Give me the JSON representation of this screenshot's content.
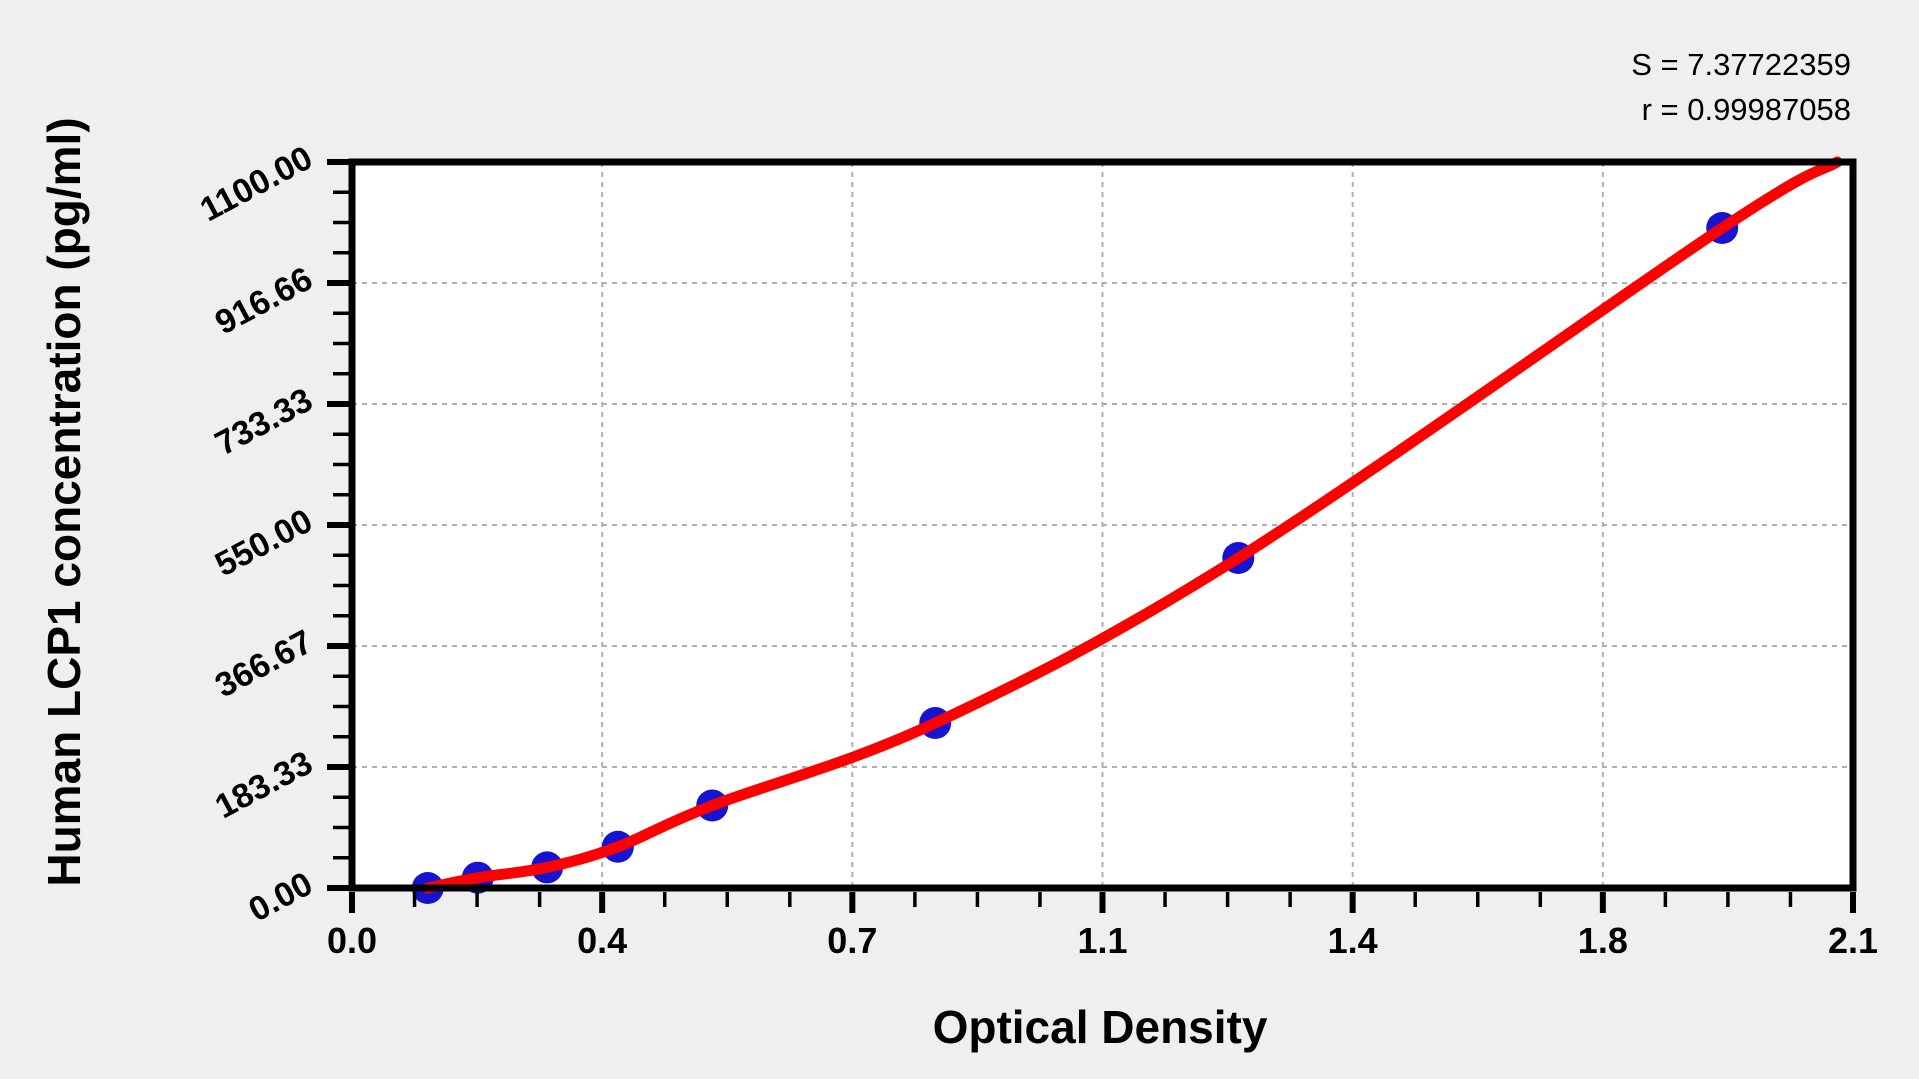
{
  "stats": {
    "s_line": "S = 7.37722359",
    "r_line": "r = 0.99987058"
  },
  "chart_data": {
    "type": "scatter",
    "title": "",
    "xlabel": "Optical Density",
    "ylabel": "Human LCP1 concentration (pg/ml)",
    "xlim": [
      0,
      2.1
    ],
    "ylim": [
      0,
      1100
    ],
    "x_major_ticks": [
      0,
      0.35,
      0.7,
      1.05,
      1.4,
      1.75,
      2.1
    ],
    "x_tick_labels": [
      "0.0",
      "0.4",
      "0.7",
      "1.1",
      "1.4",
      "1.8",
      "2.1"
    ],
    "y_major_ticks": [
      0,
      183.33,
      366.67,
      550.0,
      733.33,
      916.66,
      1100.0
    ],
    "y_tick_labels": [
      "0.00",
      "183.33",
      "366.67",
      "550.00",
      "733.33",
      "916.66",
      "1100.00"
    ],
    "minor_divisions_per_major": 4,
    "grid": {
      "style": "dashed",
      "color": "#afafaf",
      "at": "major-ticks"
    },
    "fit": {
      "S": 7.37722359,
      "r": 0.99987058
    },
    "series": [
      {
        "name": "standard-points",
        "type": "scatter",
        "color": "#1414d2",
        "points": [
          {
            "od": 0.106,
            "conc": 0
          },
          {
            "od": 0.176,
            "conc": 15.6
          },
          {
            "od": 0.273,
            "conc": 31.2
          },
          {
            "od": 0.372,
            "conc": 62.5
          },
          {
            "od": 0.504,
            "conc": 125
          },
          {
            "od": 0.816,
            "conc": 250
          },
          {
            "od": 1.24,
            "conc": 500
          },
          {
            "od": 1.917,
            "conc": 1000
          }
        ]
      },
      {
        "name": "fitted-curve",
        "type": "line",
        "color": "#ff0000",
        "end_point": {
          "od": 2.078,
          "conc": 1100
        }
      }
    ],
    "legend": null
  },
  "colors": {
    "background": "#efefef",
    "plot_background": "#ffffff",
    "axis": "#000000",
    "gridline": "#afafaf",
    "curve": "#ff0000",
    "marker": "#1414d2"
  }
}
